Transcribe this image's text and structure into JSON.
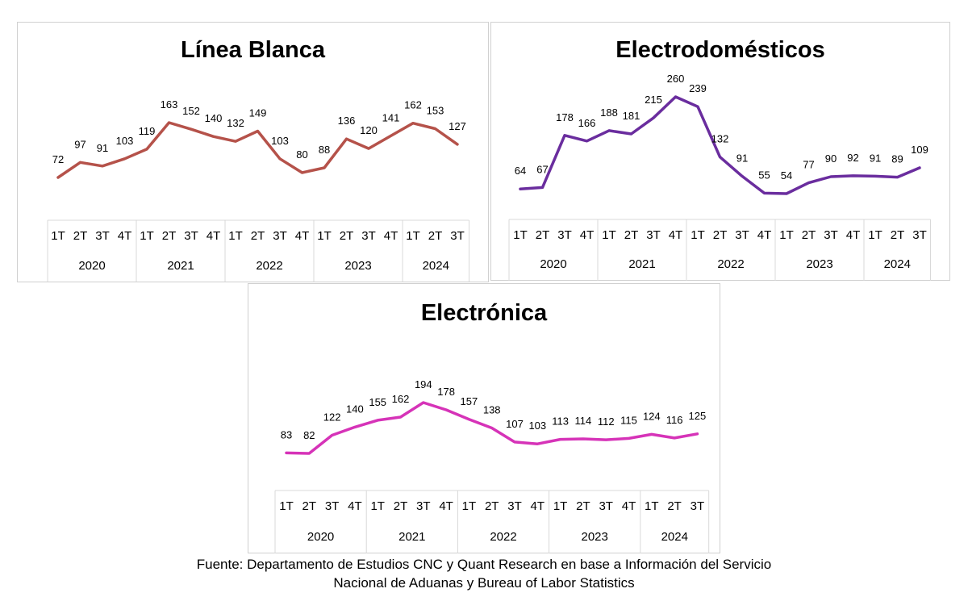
{
  "chart_data": [
    {
      "type": "line",
      "title": "Línea Blanca",
      "color": "#b5524a",
      "categories": [
        "1T",
        "2T",
        "3T",
        "4T",
        "1T",
        "2T",
        "3T",
        "4T",
        "1T",
        "2T",
        "3T",
        "4T",
        "1T",
        "2T",
        "3T",
        "4T",
        "1T",
        "2T",
        "3T"
      ],
      "years": [
        {
          "label": "2020",
          "quarters": 4
        },
        {
          "label": "2021",
          "quarters": 4
        },
        {
          "label": "2022",
          "quarters": 4
        },
        {
          "label": "2023",
          "quarters": 4
        },
        {
          "label": "2024",
          "quarters": 3
        }
      ],
      "values": [
        72,
        97,
        91,
        103,
        119,
        163,
        152,
        140,
        132,
        149,
        103,
        80,
        88,
        136,
        120,
        141,
        162,
        153,
        127
      ]
    },
    {
      "type": "line",
      "title": "Electrodomésticos",
      "color": "#6a2d9e",
      "categories": [
        "1T",
        "2T",
        "3T",
        "4T",
        "1T",
        "2T",
        "3T",
        "4T",
        "1T",
        "2T",
        "3T",
        "4T",
        "1T",
        "2T",
        "3T",
        "4T",
        "1T",
        "2T",
        "3T"
      ],
      "years": [
        {
          "label": "2020",
          "quarters": 4
        },
        {
          "label": "2021",
          "quarters": 4
        },
        {
          "label": "2022",
          "quarters": 4
        },
        {
          "label": "2023",
          "quarters": 4
        },
        {
          "label": "2024",
          "quarters": 3
        }
      ],
      "values": [
        64,
        67,
        178,
        166,
        188,
        181,
        215,
        260,
        239,
        132,
        91,
        55,
        54,
        77,
        90,
        92,
        91,
        89,
        109
      ]
    },
    {
      "type": "line",
      "title": "Electrónica",
      "color": "#d633b8",
      "categories": [
        "1T",
        "2T",
        "3T",
        "4T",
        "1T",
        "2T",
        "3T",
        "4T",
        "1T",
        "2T",
        "3T",
        "4T",
        "1T",
        "2T",
        "3T",
        "4T",
        "1T",
        "2T",
        "3T"
      ],
      "years": [
        {
          "label": "2020",
          "quarters": 4
        },
        {
          "label": "2021",
          "quarters": 4
        },
        {
          "label": "2022",
          "quarters": 4
        },
        {
          "label": "2023",
          "quarters": 4
        },
        {
          "label": "2024",
          "quarters": 3
        }
      ],
      "values": [
        83,
        82,
        122,
        140,
        155,
        162,
        194,
        178,
        157,
        138,
        107,
        103,
        113,
        114,
        112,
        115,
        124,
        116,
        125
      ]
    }
  ],
  "source": {
    "line1": "Fuente: Departamento de Estudios CNC y Quant Research en base a Información del Servicio",
    "line2": "Nacional de Aduanas y Bureau of Labor Statistics"
  }
}
